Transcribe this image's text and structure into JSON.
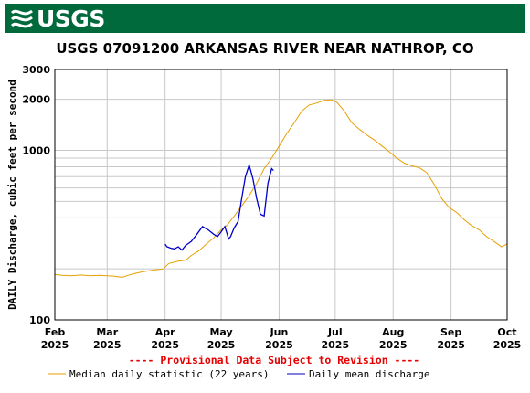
{
  "header": {
    "logo_text": "USGS",
    "title": "USGS 07091200 ARKANSAS RIVER NEAR NATHROP, CO"
  },
  "colors": {
    "banner": "#006a3d",
    "median": "#e6a000",
    "discharge": "#0000c8",
    "note": "#e60000"
  },
  "chart_data": {
    "type": "line",
    "title": "USGS 07091200 ARKANSAS RIVER NEAR NATHROP, CO",
    "ylabel": "DAILY Discharge, cubic feet per second",
    "yscale": "log",
    "ylim": [
      100,
      3000
    ],
    "yticks": [
      100,
      1000,
      2000,
      3000
    ],
    "xlim": [
      "2025-02-01",
      "2025-10-01"
    ],
    "xticks": [
      {
        "label": "Feb",
        "year": "2025",
        "date": "2025-02-01"
      },
      {
        "label": "Mar",
        "year": "2025",
        "date": "2025-03-01"
      },
      {
        "label": "Apr",
        "year": "2025",
        "date": "2025-04-01"
      },
      {
        "label": "May",
        "year": "2025",
        "date": "2025-05-01"
      },
      {
        "label": "Jun",
        "year": "2025",
        "date": "2025-06-01"
      },
      {
        "label": "Jul",
        "year": "2025",
        "date": "2025-07-01"
      },
      {
        "label": "Aug",
        "year": "2025",
        "date": "2025-08-01"
      },
      {
        "label": "Sep",
        "year": "2025",
        "date": "2025-09-01"
      },
      {
        "label": "Oct",
        "year": "2025",
        "date": "2025-10-01"
      }
    ],
    "grid": true,
    "note": "---- Provisional Data Subject to Revision ----",
    "series": [
      {
        "name": "Median daily statistic (22 years)",
        "color": "#e6a000",
        "points": [
          [
            "2025-02-01",
            185
          ],
          [
            "2025-02-05",
            183
          ],
          [
            "2025-02-10",
            182
          ],
          [
            "2025-02-15",
            184
          ],
          [
            "2025-02-20",
            182
          ],
          [
            "2025-02-25",
            183
          ],
          [
            "2025-03-01",
            182
          ],
          [
            "2025-03-05",
            181
          ],
          [
            "2025-03-09",
            178
          ],
          [
            "2025-03-12",
            183
          ],
          [
            "2025-03-16",
            188
          ],
          [
            "2025-03-20",
            192
          ],
          [
            "2025-03-25",
            196
          ],
          [
            "2025-03-31",
            200
          ],
          [
            "2025-04-03",
            215
          ],
          [
            "2025-04-08",
            222
          ],
          [
            "2025-04-12",
            225
          ],
          [
            "2025-04-15",
            240
          ],
          [
            "2025-04-19",
            255
          ],
          [
            "2025-04-23",
            280
          ],
          [
            "2025-04-27",
            305
          ],
          [
            "2025-05-01",
            340
          ],
          [
            "2025-05-04",
            360
          ],
          [
            "2025-05-08",
            410
          ],
          [
            "2025-05-12",
            470
          ],
          [
            "2025-05-16",
            540
          ],
          [
            "2025-05-20",
            640
          ],
          [
            "2025-05-24",
            780
          ],
          [
            "2025-05-28",
            900
          ],
          [
            "2025-06-01",
            1060
          ],
          [
            "2025-06-05",
            1250
          ],
          [
            "2025-06-09",
            1450
          ],
          [
            "2025-06-13",
            1700
          ],
          [
            "2025-06-17",
            1850
          ],
          [
            "2025-06-21",
            1900
          ],
          [
            "2025-06-25",
            1970
          ],
          [
            "2025-06-29",
            1990
          ],
          [
            "2025-07-02",
            1920
          ],
          [
            "2025-07-06",
            1700
          ],
          [
            "2025-07-10",
            1450
          ],
          [
            "2025-07-14",
            1330
          ],
          [
            "2025-07-18",
            1230
          ],
          [
            "2025-07-22",
            1150
          ],
          [
            "2025-07-26",
            1060
          ],
          [
            "2025-07-30",
            980
          ],
          [
            "2025-08-03",
            900
          ],
          [
            "2025-08-07",
            840
          ],
          [
            "2025-08-11",
            810
          ],
          [
            "2025-08-15",
            790
          ],
          [
            "2025-08-19",
            740
          ],
          [
            "2025-08-23",
            630
          ],
          [
            "2025-08-27",
            520
          ],
          [
            "2025-08-31",
            460
          ],
          [
            "2025-09-04",
            430
          ],
          [
            "2025-09-08",
            390
          ],
          [
            "2025-09-12",
            360
          ],
          [
            "2025-09-16",
            340
          ],
          [
            "2025-09-20",
            310
          ],
          [
            "2025-09-24",
            290
          ],
          [
            "2025-09-28",
            270
          ],
          [
            "2025-10-01",
            280
          ]
        ]
      },
      {
        "name": "Daily mean discharge",
        "color": "#0000c8",
        "points": [
          [
            "2025-04-01",
            280
          ],
          [
            "2025-04-02",
            270
          ],
          [
            "2025-04-04",
            265
          ],
          [
            "2025-04-06",
            262
          ],
          [
            "2025-04-08",
            270
          ],
          [
            "2025-04-10",
            258
          ],
          [
            "2025-04-12",
            275
          ],
          [
            "2025-04-14",
            285
          ],
          [
            "2025-04-15",
            290
          ],
          [
            "2025-04-18",
            320
          ],
          [
            "2025-04-21",
            355
          ],
          [
            "2025-04-24",
            340
          ],
          [
            "2025-04-27",
            320
          ],
          [
            "2025-04-29",
            310
          ],
          [
            "2025-05-01",
            330
          ],
          [
            "2025-05-03",
            355
          ],
          [
            "2025-05-05",
            300
          ],
          [
            "2025-05-06",
            310
          ],
          [
            "2025-05-08",
            350
          ],
          [
            "2025-05-10",
            380
          ],
          [
            "2025-05-12",
            520
          ],
          [
            "2025-05-14",
            700
          ],
          [
            "2025-05-16",
            820
          ],
          [
            "2025-05-18",
            680
          ],
          [
            "2025-05-20",
            520
          ],
          [
            "2025-05-22",
            420
          ],
          [
            "2025-05-24",
            410
          ],
          [
            "2025-05-26",
            640
          ],
          [
            "2025-05-28",
            780
          ],
          [
            "2025-05-29",
            760
          ]
        ]
      }
    ]
  }
}
